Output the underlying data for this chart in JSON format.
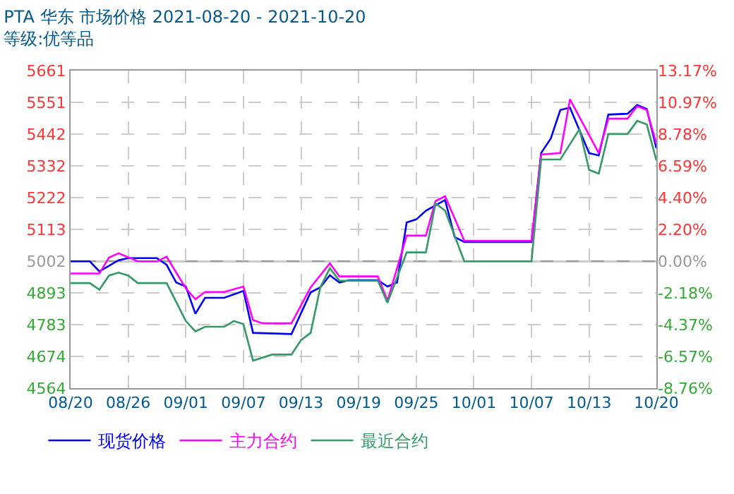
{
  "chart_data": {
    "type": "line",
    "title": "PTA 华东 市场价格 2021-08-20 - 2021-10-20",
    "subtitle": "等级:优等品",
    "series": [
      {
        "name": "现货价格",
        "color": "#0000ff",
        "x": [
          "2021-08-20",
          "2021-08-22",
          "2021-08-23",
          "2021-08-25",
          "2021-08-26",
          "2021-08-29",
          "2021-08-30",
          "2021-08-31",
          "2021-09-01",
          "2021-09-02",
          "2021-09-03",
          "2021-09-05",
          "2021-09-07",
          "2021-09-08",
          "2021-09-12",
          "2021-09-14",
          "2021-09-15",
          "2021-09-16",
          "2021-09-17",
          "2021-09-18",
          "2021-09-21",
          "2021-09-22",
          "2021-09-23",
          "2021-09-24",
          "2021-09-25",
          "2021-09-26",
          "2021-09-28",
          "2021-09-29",
          "2021-09-30",
          "2021-10-07",
          "2021-10-08",
          "2021-10-09",
          "2021-10-10",
          "2021-10-11",
          "2021-10-13",
          "2021-10-14",
          "2021-10-15",
          "2021-10-17",
          "2021-10-18",
          "2021-10-19",
          "2021-10-20"
        ],
        "values": [
          5002,
          5002,
          4967,
          5006,
          5013,
          5013,
          4990,
          4929,
          4915,
          4821,
          4876,
          4876,
          4900,
          4755,
          4751,
          4895,
          4912,
          4954,
          4929,
          4937,
          4937,
          4915,
          4929,
          5136,
          5147,
          5177,
          5214,
          5086,
          5069,
          5069,
          5376,
          5426,
          5525,
          5533,
          5376,
          5368,
          5509,
          5512,
          5542,
          5528,
          5393
        ]
      },
      {
        "name": "主力合约",
        "color": "#ff00ff",
        "x": [
          "2021-08-20",
          "2021-08-23",
          "2021-08-24",
          "2021-08-25",
          "2021-08-27",
          "2021-08-29",
          "2021-08-30",
          "2021-09-01",
          "2021-09-02",
          "2021-09-03",
          "2021-09-05",
          "2021-09-07",
          "2021-09-08",
          "2021-09-09",
          "2021-09-12",
          "2021-09-14",
          "2021-09-16",
          "2021-09-17",
          "2021-09-21",
          "2021-09-22",
          "2021-09-24",
          "2021-09-26",
          "2021-09-27",
          "2021-09-28",
          "2021-09-30",
          "2021-10-07",
          "2021-10-08",
          "2021-10-10",
          "2021-10-11",
          "2021-10-14",
          "2021-10-15",
          "2021-10-17",
          "2021-10-18",
          "2021-10-19",
          "2021-10-20"
        ],
        "values": [
          4960,
          4960,
          5015,
          5030,
          5002,
          5002,
          5018,
          4909,
          4871,
          4896,
          4896,
          4915,
          4799,
          4788,
          4788,
          4912,
          4995,
          4950,
          4950,
          4866,
          5091,
          5091,
          5210,
          5227,
          5073,
          5073,
          5371,
          5376,
          5562,
          5376,
          5495,
          5495,
          5538,
          5525,
          5409
        ]
      },
      {
        "name": "最近合约",
        "color": "#339966",
        "x": [
          "2021-08-20",
          "2021-08-22",
          "2021-08-23",
          "2021-08-24",
          "2021-08-25",
          "2021-08-26",
          "2021-08-27",
          "2021-08-30",
          "2021-09-01",
          "2021-09-02",
          "2021-09-03",
          "2021-09-05",
          "2021-09-06",
          "2021-09-07",
          "2021-09-08",
          "2021-09-10",
          "2021-09-12",
          "2021-09-13",
          "2021-09-14",
          "2021-09-15",
          "2021-09-16",
          "2021-09-17",
          "2021-09-21",
          "2021-09-22",
          "2021-09-24",
          "2021-09-26",
          "2021-09-27",
          "2021-09-28",
          "2021-09-30",
          "2021-10-07",
          "2021-10-08",
          "2021-10-10",
          "2021-10-12",
          "2021-10-13",
          "2021-10-14",
          "2021-10-15",
          "2021-10-17",
          "2021-10-18",
          "2021-10-19",
          "2021-10-20"
        ],
        "values": [
          4927,
          4927,
          4904,
          4953,
          4963,
          4953,
          4927,
          4927,
          4796,
          4760,
          4776,
          4776,
          4796,
          4785,
          4659,
          4680,
          4680,
          4730,
          4755,
          4912,
          4978,
          4935,
          4935,
          4859,
          5033,
          5033,
          5202,
          5177,
          5002,
          5002,
          5354,
          5354,
          5459,
          5318,
          5305,
          5442,
          5442,
          5487,
          5475,
          5351
        ]
      }
    ],
    "xlim": [
      "2021-08-20",
      "2021-10-20"
    ],
    "xticks": [
      {
        "value": "2021-08-20",
        "label": "08/20"
      },
      {
        "value": "2021-08-26",
        "label": "08/26"
      },
      {
        "value": "2021-09-01",
        "label": "09/01"
      },
      {
        "value": "2021-09-07",
        "label": "09/07"
      },
      {
        "value": "2021-09-13",
        "label": "09/13"
      },
      {
        "value": "2021-09-19",
        "label": "09/19"
      },
      {
        "value": "2021-09-25",
        "label": "09/25"
      },
      {
        "value": "2021-10-01",
        "label": "10/01"
      },
      {
        "value": "2021-10-07",
        "label": "10/07"
      },
      {
        "value": "2021-10-13",
        "label": "10/13"
      },
      {
        "value": "2021-10-20",
        "label": "10/20"
      }
    ],
    "ylim": [
      4564,
      5661
    ],
    "yticks": [
      4564,
      4674,
      4783,
      4893,
      5002,
      5113,
      5222,
      5332,
      5442,
      5551,
      5661
    ],
    "y2lim": [
      -8.76,
      13.17
    ],
    "y2ticks": [
      {
        "value": -8.76,
        "label": "-8.76%"
      },
      {
        "value": -6.57,
        "label": "-6.57%"
      },
      {
        "value": -4.37,
        "label": "-4.37%"
      },
      {
        "value": -2.18,
        "label": "-2.18%"
      },
      {
        "value": 0,
        "label": "0.00%"
      },
      {
        "value": 2.2,
        "label": "2.20%"
      },
      {
        "value": 4.4,
        "label": "4.40%"
      },
      {
        "value": 6.59,
        "label": "6.59%"
      },
      {
        "value": 8.78,
        "label": "8.78%"
      },
      {
        "value": 10.97,
        "label": "10.97%"
      },
      {
        "value": 13.17,
        "label": "13.17%"
      }
    ],
    "ref_lines": [
      {
        "axis": "y",
        "value": 5002,
        "color": "#999999",
        "line_style": "solid"
      }
    ],
    "grid": true,
    "legend": "bottom left",
    "marker": "none",
    "line_style": "solid"
  }
}
